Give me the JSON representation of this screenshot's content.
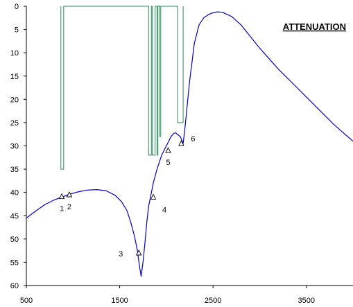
{
  "chart_data": {
    "type": "line",
    "title": "ATTENUATION",
    "xlabel": "",
    "ylabel": "",
    "xlim": [
      500,
      4000
    ],
    "ylim": [
      0,
      60
    ],
    "y_inverted": true,
    "grid": false,
    "x_ticks": [
      "500",
      "1500",
      "2500",
      "3500"
    ],
    "y_ticks": [
      "0",
      "5",
      "10",
      "15",
      "20",
      "25",
      "30",
      "35",
      "40",
      "45",
      "50",
      "55",
      "60"
    ],
    "colors": {
      "curve": "#0000cc",
      "mask": "#2e8b57",
      "axis": "#000000"
    },
    "series": [
      {
        "kind": "curve",
        "x": [
          500,
          600,
          700,
          800,
          880,
          960,
          1050,
          1150,
          1250,
          1350,
          1450,
          1520,
          1580,
          1620,
          1660,
          1690,
          1710,
          1730,
          1750,
          1770,
          1790,
          1810,
          1830,
          1860,
          1900,
          1950,
          2000,
          2050,
          2080,
          2100,
          2150,
          2180,
          2200,
          2250,
          2300,
          2350,
          2400,
          2450,
          2500,
          2550,
          2600,
          2700,
          2800,
          2900,
          3000,
          3200,
          3400,
          3600,
          3800,
          4000
        ],
        "y": [
          45.5,
          44.0,
          42.6,
          41.6,
          41.0,
          40.4,
          39.9,
          39.5,
          39.4,
          39.6,
          40.6,
          42.0,
          44.0,
          46.5,
          49.5,
          52.5,
          55.5,
          58.0,
          55.0,
          51.0,
          46.5,
          43.0,
          41.0,
          38.0,
          35.0,
          32.0,
          30.0,
          28.0,
          27.3,
          27.2,
          28.0,
          29.5,
          26.0,
          16.0,
          8.0,
          4.0,
          2.5,
          1.8,
          1.4,
          1.2,
          1.3,
          2.2,
          4.0,
          6.5,
          9.0,
          13.5,
          17.5,
          21.5,
          25.5,
          29.0
        ]
      },
      {
        "kind": "mask",
        "x": [
          870,
          870,
          900,
          900,
          1810,
          1810,
          1840,
          1840,
          1850,
          1850,
          1880,
          1880,
          1900,
          1900,
          1910,
          1910,
          1930,
          1930,
          1940,
          1940,
          1970,
          1970,
          2120,
          2120,
          2180,
          2180
        ],
        "y": [
          0,
          35,
          35,
          0,
          0,
          32,
          32,
          0,
          0,
          32,
          32,
          0,
          0,
          32,
          32,
          0,
          0,
          28,
          28,
          0,
          0,
          0,
          0,
          25,
          25,
          0
        ]
      }
    ],
    "markers": [
      {
        "label": "1",
        "x": 880,
        "y": 40.9,
        "label_side": "below"
      },
      {
        "label": "2",
        "x": 960,
        "y": 40.5,
        "label_side": "below"
      },
      {
        "label": "3",
        "x": 1705,
        "y": 53.0,
        "label_side": "left"
      },
      {
        "label": "4",
        "x": 1860,
        "y": 41.0,
        "label_side": "below-right"
      },
      {
        "label": "5",
        "x": 2020,
        "y": 31.0,
        "label_side": "below"
      },
      {
        "label": "6",
        "x": 2160,
        "y": 29.5,
        "label_side": "right"
      }
    ]
  }
}
